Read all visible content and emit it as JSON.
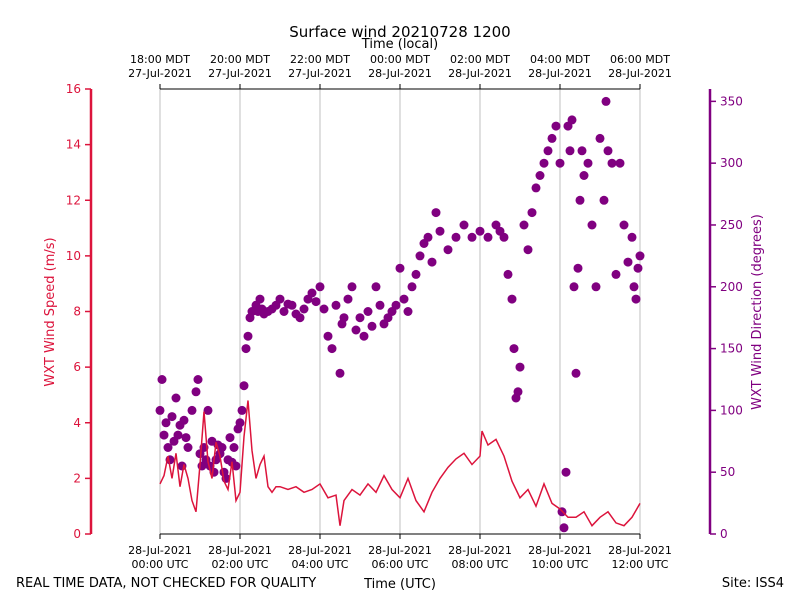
{
  "chart_data": {
    "type": "line+scatter",
    "title": "Surface wind 20210728 1200",
    "top_xlabel": "Time (local)",
    "xlabel": "Time (UTC)",
    "ylabel_left": "WXT Wind Speed (m/s)",
    "ylabel_right": "WXT Wind Direction (degrees)",
    "footer_left": "REAL TIME DATA, NOT CHECKED FOR QUALITY",
    "footer_right": "Site: ISS4",
    "x_unit": "hours since 2021-07-28 00:00 UTC",
    "xlim": [
      0,
      12
    ],
    "ylim_left": [
      0,
      16
    ],
    "ylim_right": [
      0,
      360
    ],
    "yticks_left": [
      "0",
      "2",
      "4",
      "6",
      "8",
      "10",
      "12",
      "14",
      "16"
    ],
    "yticks_right": [
      "0",
      "50",
      "100",
      "150",
      "200",
      "250",
      "300",
      "350"
    ],
    "xticks_bottom": [
      {
        "line1": "28-Jul-2021",
        "line2": "00:00 UTC"
      },
      {
        "line1": "28-Jul-2021",
        "line2": "02:00 UTC"
      },
      {
        "line1": "28-Jul-2021",
        "line2": "04:00 UTC"
      },
      {
        "line1": "28-Jul-2021",
        "line2": "06:00 UTC"
      },
      {
        "line1": "28-Jul-2021",
        "line2": "08:00 UTC"
      },
      {
        "line1": "28-Jul-2021",
        "line2": "10:00 UTC"
      },
      {
        "line1": "28-Jul-2021",
        "line2": "12:00 UTC"
      }
    ],
    "xticks_top": [
      {
        "line1": "18:00 MDT",
        "line2": "27-Jul-2021"
      },
      {
        "line1": "20:00 MDT",
        "line2": "27-Jul-2021"
      },
      {
        "line1": "22:00 MDT",
        "line2": "27-Jul-2021"
      },
      {
        "line1": "00:00 MDT",
        "line2": "28-Jul-2021"
      },
      {
        "line1": "02:00 MDT",
        "line2": "28-Jul-2021"
      },
      {
        "line1": "04:00 MDT",
        "line2": "28-Jul-2021"
      },
      {
        "line1": "06:00 MDT",
        "line2": "28-Jul-2021"
      }
    ],
    "grid_x": true,
    "colors": {
      "speed": "#dc143c",
      "direction": "#800080",
      "grid": "#b0b0b0",
      "axis": "#000000"
    },
    "series": [
      {
        "name": "WXT Wind Speed",
        "axis": "left",
        "style": "line",
        "x": [
          0.0,
          0.1,
          0.2,
          0.3,
          0.4,
          0.5,
          0.6,
          0.7,
          0.8,
          0.9,
          1.0,
          1.1,
          1.2,
          1.3,
          1.4,
          1.5,
          1.6,
          1.7,
          1.8,
          1.9,
          2.0,
          2.1,
          2.2,
          2.3,
          2.4,
          2.5,
          2.6,
          2.7,
          2.8,
          2.9,
          3.0,
          3.2,
          3.4,
          3.6,
          3.8,
          4.0,
          4.2,
          4.4,
          4.5,
          4.6,
          4.8,
          5.0,
          5.2,
          5.4,
          5.6,
          5.8,
          6.0,
          6.2,
          6.4,
          6.6,
          6.8,
          7.0,
          7.2,
          7.4,
          7.6,
          7.8,
          8.0,
          8.05,
          8.2,
          8.4,
          8.6,
          8.8,
          9.0,
          9.2,
          9.4,
          9.6,
          9.8,
          10.0,
          10.2,
          10.4,
          10.6,
          10.8,
          11.0,
          11.2,
          11.4,
          11.6,
          11.8,
          12.0
        ],
        "values": [
          1.8,
          2.1,
          2.8,
          2.0,
          2.9,
          1.7,
          2.5,
          2.0,
          1.2,
          0.8,
          2.5,
          4.4,
          2.6,
          2.0,
          3.3,
          2.8,
          1.9,
          1.6,
          2.6,
          1.2,
          1.5,
          3.5,
          4.8,
          3.0,
          2.0,
          2.5,
          2.8,
          1.7,
          1.5,
          1.7,
          1.7,
          1.6,
          1.7,
          1.5,
          1.6,
          1.8,
          1.3,
          1.4,
          0.3,
          1.2,
          1.6,
          1.4,
          1.8,
          1.5,
          2.1,
          1.6,
          1.3,
          2.0,
          1.2,
          0.8,
          1.5,
          2.0,
          2.4,
          2.7,
          2.9,
          2.5,
          2.8,
          3.7,
          3.2,
          3.4,
          2.8,
          1.9,
          1.3,
          1.6,
          1.0,
          1.8,
          1.1,
          0.9,
          0.6,
          0.6,
          0.8,
          0.3,
          0.6,
          0.8,
          0.4,
          0.3,
          0.6,
          1.1
        ]
      },
      {
        "name": "WXT Wind Direction",
        "axis": "right",
        "style": "scatter",
        "x": [
          0.0,
          0.05,
          0.1,
          0.15,
          0.2,
          0.25,
          0.3,
          0.35,
          0.4,
          0.45,
          0.5,
          0.55,
          0.6,
          0.65,
          0.7,
          0.8,
          0.9,
          0.95,
          1.0,
          1.05,
          1.1,
          1.15,
          1.2,
          1.25,
          1.3,
          1.35,
          1.4,
          1.45,
          1.5,
          1.55,
          1.6,
          1.65,
          1.7,
          1.75,
          1.8,
          1.85,
          1.9,
          1.95,
          2.0,
          2.05,
          2.1,
          2.15,
          2.2,
          2.25,
          2.3,
          2.4,
          2.45,
          2.5,
          2.55,
          2.6,
          2.7,
          2.8,
          2.9,
          3.0,
          3.1,
          3.2,
          3.3,
          3.4,
          3.5,
          3.6,
          3.7,
          3.8,
          3.9,
          4.0,
          4.1,
          4.2,
          4.3,
          4.4,
          4.5,
          4.55,
          4.6,
          4.7,
          4.8,
          4.9,
          5.0,
          5.1,
          5.2,
          5.3,
          5.4,
          5.5,
          5.6,
          5.7,
          5.8,
          5.9,
          6.0,
          6.1,
          6.2,
          6.3,
          6.4,
          6.5,
          6.6,
          6.7,
          6.8,
          6.9,
          7.0,
          7.2,
          7.4,
          7.6,
          7.8,
          8.0,
          8.2,
          8.4,
          8.5,
          8.6,
          8.7,
          8.8,
          8.85,
          8.9,
          8.95,
          9.0,
          9.1,
          9.2,
          9.3,
          9.4,
          9.5,
          9.6,
          9.7,
          9.8,
          9.9,
          10.0,
          10.05,
          10.1,
          10.15,
          10.2,
          10.25,
          10.3,
          10.35,
          10.4,
          10.45,
          10.5,
          10.55,
          10.6,
          10.7,
          10.8,
          10.9,
          11.0,
          11.1,
          11.15,
          11.2,
          11.3,
          11.4,
          11.5,
          11.6,
          11.7,
          11.8,
          11.85,
          11.9,
          11.95,
          12.0
        ],
        "values": [
          100,
          125,
          80,
          90,
          70,
          60,
          95,
          75,
          110,
          80,
          88,
          55,
          92,
          78,
          70,
          100,
          115,
          125,
          65,
          55,
          70,
          60,
          100,
          55,
          75,
          50,
          60,
          72,
          65,
          70,
          50,
          45,
          60,
          78,
          58,
          70,
          55,
          85,
          90,
          100,
          120,
          150,
          160,
          175,
          180,
          185,
          180,
          190,
          182,
          178,
          180,
          182,
          185,
          190,
          180,
          186,
          185,
          178,
          175,
          182,
          190,
          195,
          188,
          200,
          182,
          160,
          150,
          185,
          130,
          170,
          175,
          190,
          200,
          165,
          175,
          160,
          180,
          168,
          200,
          185,
          170,
          175,
          180,
          185,
          215,
          190,
          180,
          200,
          210,
          225,
          235,
          240,
          220,
          260,
          245,
          230,
          240,
          250,
          240,
          245,
          240,
          250,
          245,
          240,
          210,
          190,
          150,
          110,
          115,
          135,
          250,
          230,
          260,
          280,
          290,
          300,
          310,
          320,
          330,
          300,
          18,
          5,
          50,
          330,
          310,
          335,
          200,
          130,
          215,
          270,
          310,
          290,
          300,
          250,
          200,
          320,
          270,
          350,
          310,
          300,
          210,
          300,
          250,
          220,
          240,
          200,
          190,
          215,
          225
        ]
      }
    ]
  }
}
